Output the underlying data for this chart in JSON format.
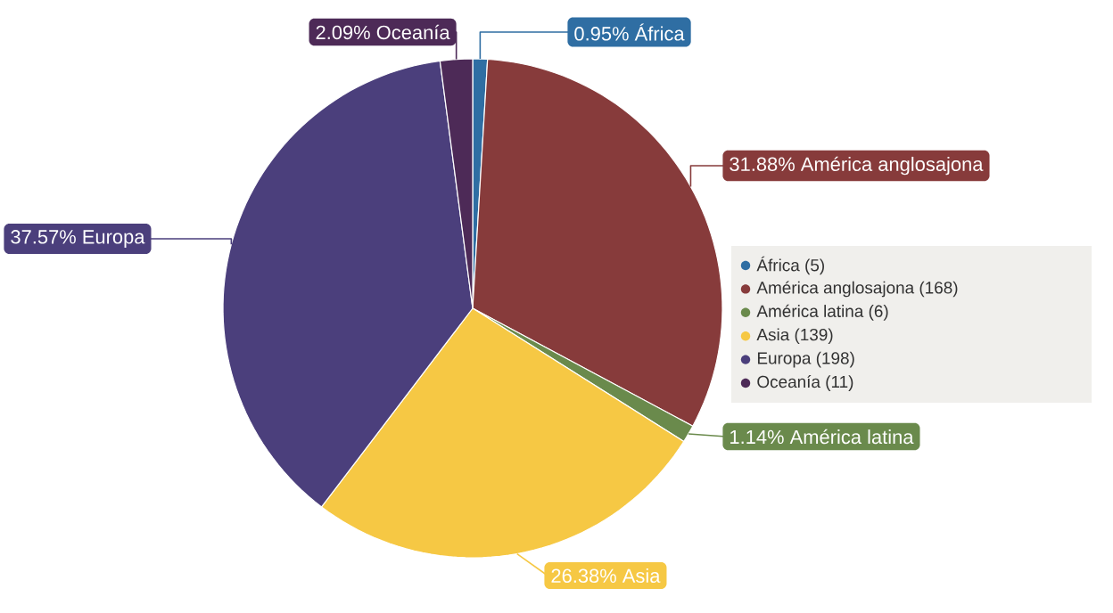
{
  "chart_data": {
    "type": "pie",
    "categories": [
      "África (5)",
      "América anglosajona (168)",
      "América latina (6)",
      "Asia (139)",
      "Europa (198)",
      "Oceanía (11)"
    ],
    "values": [
      0.95,
      31.88,
      1.14,
      26.38,
      37.57,
      2.09
    ],
    "value_labels": [
      "0.95% África",
      "31.88% América anglosajona",
      "1.14% América latina",
      "26.38% Asia",
      "37.57% Europa",
      "2.09% Oceanía"
    ],
    "colors": [
      "#2f6ea3",
      "#873b3b",
      "#6a8a4c",
      "#f6c844",
      "#4b3f7c",
      "#4d2a57"
    ],
    "legend": "right"
  }
}
